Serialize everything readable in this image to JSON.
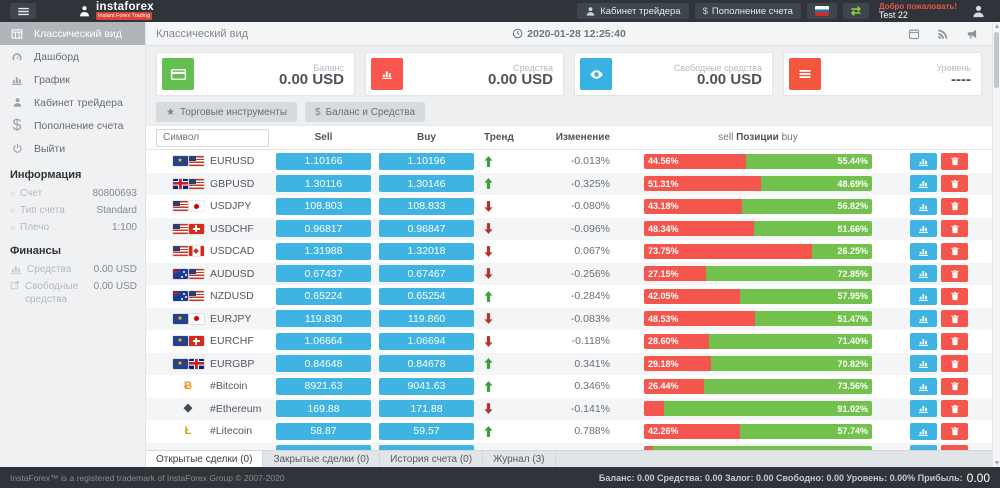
{
  "topbar": {
    "brand": "instaforex",
    "brand_sub": "Instant Forex Trading",
    "trader_cabinet": "Кабинет трейдера",
    "deposit": "Пополнение счета",
    "welcome": "Добро пожаловать!",
    "username": "Test 22"
  },
  "sidebar": {
    "items": [
      {
        "label": "Классический вид",
        "icon": "grid",
        "active": true
      },
      {
        "label": "Дашборд",
        "icon": "gauge"
      },
      {
        "label": "График",
        "icon": "chart"
      },
      {
        "label": "Кабинет трейдера",
        "icon": "person"
      },
      {
        "label": "Пополнение счета",
        "icon": "dollar"
      },
      {
        "label": "Выйти",
        "icon": "power"
      }
    ],
    "info_title": "Информация",
    "info": [
      {
        "label": "Счет",
        "value": "80800693"
      },
      {
        "label": "Тип счета",
        "value": "Standard"
      },
      {
        "label": "Плечо",
        "value": "1:100"
      }
    ],
    "finance_title": "Финансы",
    "finance": [
      {
        "label": "Средства",
        "value": "0.00 USD",
        "icon": "chart"
      },
      {
        "label": "Свободные средства",
        "value": "0.00 USD",
        "icon": "external"
      }
    ]
  },
  "header": {
    "title": "Классический вид",
    "timestamp": "2020-01-28 12:25:40"
  },
  "cards": [
    {
      "label": "Баланс",
      "value": "0.00 USD",
      "icon": "credit-card",
      "color": "#63bf4f"
    },
    {
      "label": "Средства",
      "value": "0.00 USD",
      "icon": "chart",
      "color": "#f9564f"
    },
    {
      "label": "Свободные средства",
      "value": "0.00 USD",
      "icon": "eye",
      "color": "#38b2e3"
    },
    {
      "label": "Уровень",
      "value": "----",
      "icon": "list",
      "color": "#f4573d"
    }
  ],
  "toolbar": {
    "instruments_label": "Торговые инструменты",
    "balance_label": "Баланс и Средства"
  },
  "table": {
    "search_placeholder": "Символ",
    "headers": {
      "sell": "Sell",
      "buy": "Buy",
      "trend": "Тренд",
      "change": "Изменение",
      "positions_left": "sell",
      "positions_mid": "Позиции",
      "positions_right": "buy"
    },
    "rows": [
      {
        "symbol": "EURUSD",
        "icons": [
          {
            "kind": "flag",
            "code": "eu"
          },
          {
            "kind": "flag",
            "code": "us"
          }
        ],
        "sell": "1.10166",
        "buy": "1.10196",
        "trend": "up",
        "change": "-0.013%",
        "sell_pct": 44.56,
        "sell_label": "44.56%",
        "buy_pct": 55.44,
        "buy_label": "55.44%"
      },
      {
        "symbol": "GBPUSD",
        "icons": [
          {
            "kind": "flag",
            "code": "gb"
          },
          {
            "kind": "flag",
            "code": "us"
          }
        ],
        "sell": "1.30116",
        "buy": "1.30146",
        "trend": "up",
        "change": "-0.325%",
        "sell_pct": 51.31,
        "sell_label": "51.31%",
        "buy_pct": 48.69,
        "buy_label": "48.69%"
      },
      {
        "symbol": "USDJPY",
        "icons": [
          {
            "kind": "flag",
            "code": "us"
          },
          {
            "kind": "flag",
            "code": "jp"
          }
        ],
        "sell": "108.803",
        "buy": "108.833",
        "trend": "down",
        "change": "-0.080%",
        "sell_pct": 43.18,
        "sell_label": "43.18%",
        "buy_pct": 56.82,
        "buy_label": "56.82%"
      },
      {
        "symbol": "USDCHF",
        "icons": [
          {
            "kind": "flag",
            "code": "us"
          },
          {
            "kind": "flag",
            "code": "ch"
          }
        ],
        "sell": "0.96817",
        "buy": "0.96847",
        "trend": "down",
        "change": "-0.096%",
        "sell_pct": 48.34,
        "sell_label": "48.34%",
        "buy_pct": 51.66,
        "buy_label": "51.66%"
      },
      {
        "symbol": "USDCAD",
        "icons": [
          {
            "kind": "flag",
            "code": "us"
          },
          {
            "kind": "flag",
            "code": "ca"
          }
        ],
        "sell": "1.31988",
        "buy": "1.32018",
        "trend": "down",
        "change": "0.067%",
        "sell_pct": 73.75,
        "sell_label": "73.75%",
        "buy_pct": 26.25,
        "buy_label": "26.25%"
      },
      {
        "symbol": "AUDUSD",
        "icons": [
          {
            "kind": "flag",
            "code": "au"
          },
          {
            "kind": "flag",
            "code": "us"
          }
        ],
        "sell": "0.67437",
        "buy": "0.67467",
        "trend": "down",
        "change": "-0.256%",
        "sell_pct": 27.15,
        "sell_label": "27.15%",
        "buy_pct": 72.85,
        "buy_label": "72.85%"
      },
      {
        "symbol": "NZDUSD",
        "icons": [
          {
            "kind": "flag",
            "code": "nz"
          },
          {
            "kind": "flag",
            "code": "us"
          }
        ],
        "sell": "0.65224",
        "buy": "0.65254",
        "trend": "up",
        "change": "-0.284%",
        "sell_pct": 42.05,
        "sell_label": "42.05%",
        "buy_pct": 57.95,
        "buy_label": "57.95%"
      },
      {
        "symbol": "EURJPY",
        "icons": [
          {
            "kind": "flag",
            "code": "eu"
          },
          {
            "kind": "flag",
            "code": "jp"
          }
        ],
        "sell": "119.830",
        "buy": "119.860",
        "trend": "down",
        "change": "-0.083%",
        "sell_pct": 48.53,
        "sell_label": "48.53%",
        "buy_pct": 51.47,
        "buy_label": "51.47%"
      },
      {
        "symbol": "EURCHF",
        "icons": [
          {
            "kind": "flag",
            "code": "eu"
          },
          {
            "kind": "flag",
            "code": "ch"
          }
        ],
        "sell": "1.06664",
        "buy": "1.06694",
        "trend": "down",
        "change": "-0.118%",
        "sell_pct": 28.6,
        "sell_label": "28.60%",
        "buy_pct": 71.4,
        "buy_label": "71.40%"
      },
      {
        "symbol": "EURGBP",
        "icons": [
          {
            "kind": "flag",
            "code": "eu"
          },
          {
            "kind": "flag",
            "code": "gb"
          }
        ],
        "sell": "0.84648",
        "buy": "0.84678",
        "trend": "up",
        "change": "0.341%",
        "sell_pct": 29.18,
        "sell_label": "29.18%",
        "buy_pct": 70.82,
        "buy_label": "70.82%"
      },
      {
        "symbol": "#Bitcoin",
        "icons": [
          {
            "kind": "crypto",
            "glyph": "Ƀ",
            "color": "#f7931a"
          }
        ],
        "sell": "8921.63",
        "buy": "9041.63",
        "trend": "up",
        "change": "0.346%",
        "sell_pct": 26.44,
        "sell_label": "26.44%",
        "buy_pct": 73.56,
        "buy_label": "73.56%"
      },
      {
        "symbol": "#Ethereum",
        "icons": [
          {
            "kind": "crypto",
            "glyph": "◆",
            "color": "#454a4d"
          }
        ],
        "sell": "169.88",
        "buy": "171.88",
        "trend": "down",
        "change": "-0.141%",
        "sell_pct": 8.98,
        "sell_label": "",
        "buy_pct": 91.02,
        "buy_label": "91.02%"
      },
      {
        "symbol": "#Litecoin",
        "icons": [
          {
            "kind": "crypto",
            "glyph": "Ł",
            "color": "#d4a017"
          }
        ],
        "sell": "58.87",
        "buy": "59.57",
        "trend": "up",
        "change": "0.788%",
        "sell_pct": 42.26,
        "sell_label": "42.26%",
        "buy_pct": 57.74,
        "buy_label": "57.74%"
      },
      {
        "symbol": "",
        "icons": [],
        "sell": "",
        "buy": "",
        "trend": "",
        "change": "",
        "sell_pct": 4,
        "sell_label": "",
        "buy_pct": 96,
        "buy_label": ""
      }
    ]
  },
  "tabs": [
    {
      "label": "Открытые сделки (0)",
      "active": true
    },
    {
      "label": "Закрытые сделки (0)"
    },
    {
      "label": "История счета (0)"
    },
    {
      "label": "Журнал (3)"
    }
  ],
  "footer": {
    "copyright": "InstaForex™ is a registered trademark of InstaForex Group © 2007-2020",
    "summary": "Баланс: 0.00 Средства: 0.00 Залог: 0.00 Свободно: 0.00 Уровень: 0.00% Прибыль:",
    "profit": "0.00"
  }
}
